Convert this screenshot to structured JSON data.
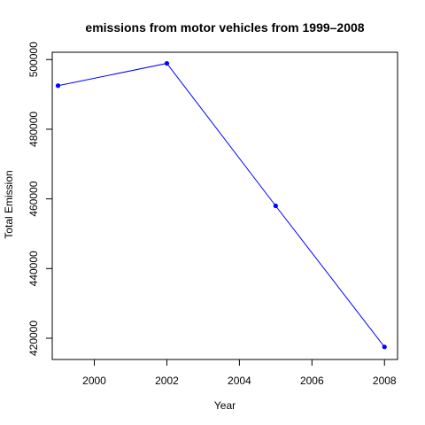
{
  "chart_data": {
    "type": "line",
    "title": "emissions from motor vehicles from 1999–2008",
    "xlabel": "Year",
    "ylabel": "Total Emission",
    "x": [
      1999,
      2002,
      2005,
      2008
    ],
    "series": [
      {
        "values": [
          492500,
          498900,
          458000,
          417500
        ]
      }
    ],
    "xlim": [
      1998.84,
      2008.36
    ],
    "ylim": [
      413900,
      502100
    ],
    "xticks": [
      2000,
      2002,
      2004,
      2006,
      2008
    ],
    "yticks": [
      420000,
      440000,
      460000,
      480000,
      500000
    ],
    "xtick_labels": [
      "2000",
      "2002",
      "2004",
      "2006",
      "2008"
    ],
    "ytick_labels": [
      "420000",
      "440000",
      "460000",
      "480000",
      "500000"
    ],
    "grid": false,
    "line_color": "#0000ff",
    "point_color": "#0000ff"
  }
}
